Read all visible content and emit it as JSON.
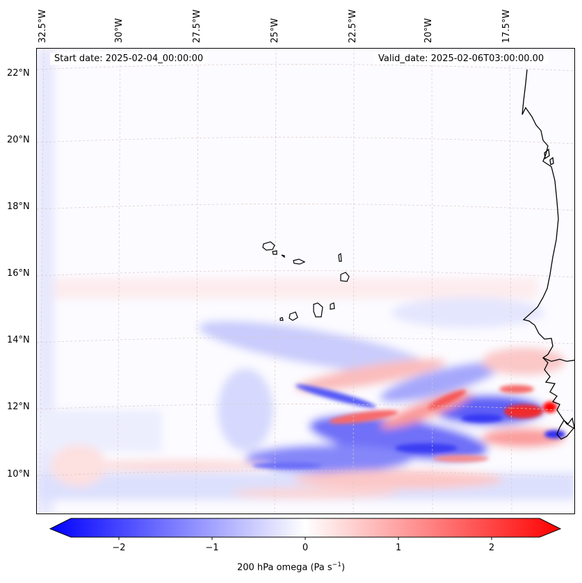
{
  "map": {
    "start_date": "Start date: 2025-02-04_00:00:00",
    "valid_date": "Valid_date: 2025-02-06T03:00:00.00",
    "longitude_labels": [
      "32.5°W",
      "30°W",
      "27.5°W",
      "25°W",
      "22.5°W",
      "20°W",
      "17.5°W"
    ],
    "latitude_labels": [
      "22°N",
      "20°N",
      "18°N",
      "16°N",
      "14°N",
      "12°N",
      "10°N"
    ],
    "gridlines": true,
    "field": "200 hPa omega",
    "positive_color": "#ff0000",
    "negative_color": "#0000ff",
    "coastline_color": "#000000"
  },
  "colorbar": {
    "ticks": [
      "−2",
      "−1",
      "0",
      "1",
      "2"
    ],
    "range": [
      -2.7,
      2.7
    ],
    "label_main": "200 hPa omega (Pa s",
    "label_sup": "−1",
    "label_end": ")"
  }
}
